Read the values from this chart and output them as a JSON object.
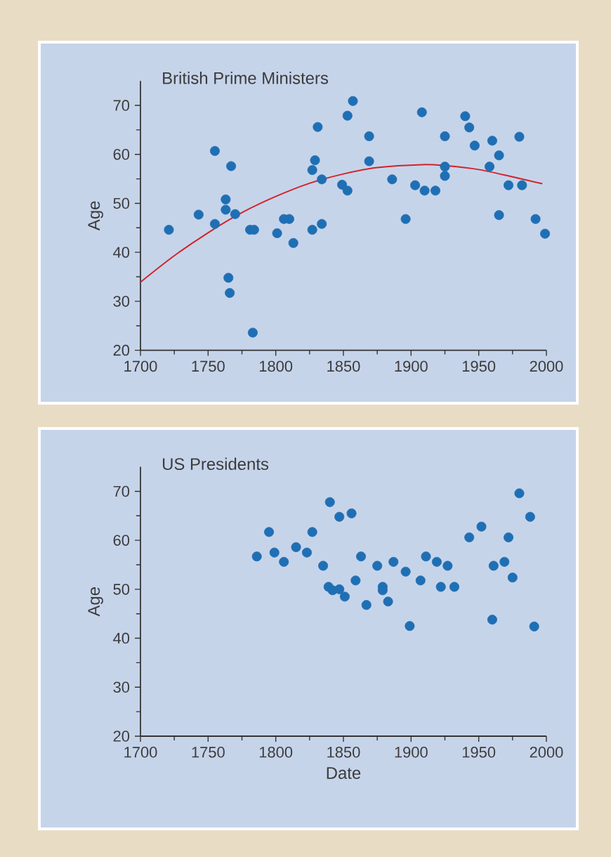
{
  "chart_data": [
    {
      "type": "scatter",
      "title": "British Prime Ministers",
      "ylabel": "Age",
      "xlim": [
        1700,
        2000
      ],
      "ylim": [
        20,
        75
      ],
      "xticks": [
        1700,
        1750,
        1800,
        1850,
        1900,
        1950,
        2000
      ],
      "yticks": [
        20,
        30,
        40,
        50,
        60,
        70
      ],
      "series": [
        {
          "marker": "circle",
          "color": "#1f6fb4",
          "x": [
            1721,
            1743,
            1755,
            1755,
            1763,
            1763,
            1767,
            1770,
            1765,
            1766,
            1781,
            1784,
            1783,
            1801,
            1806,
            1810,
            1813,
            1827,
            1834,
            1827,
            1829,
            1831,
            1834,
            1849,
            1853,
            1853,
            1857,
            1869,
            1869,
            1886,
            1896,
            1903,
            1908,
            1910,
            1918,
            1925,
            1925,
            1925,
            1940,
            1943,
            1947,
            1958,
            1960,
            1965,
            1965,
            1972,
            1980,
            1982,
            1992,
            1999
          ],
          "values": [
            44.6,
            47.7,
            60.7,
            45.8,
            50.8,
            48.7,
            57.6,
            47.8,
            34.8,
            31.7,
            44.6,
            44.6,
            23.6,
            43.9,
            46.8,
            46.8,
            41.9,
            44.6,
            45.8,
            56.8,
            58.8,
            65.6,
            54.9,
            53.8,
            52.6,
            67.9,
            70.9,
            63.7,
            58.6,
            54.9,
            46.8,
            53.7,
            68.6,
            52.6,
            52.6,
            63.7,
            57.5,
            55.6,
            67.8,
            65.5,
            61.8,
            57.5,
            62.8,
            59.8,
            47.6,
            53.7,
            63.6,
            53.7,
            46.8,
            43.8
          ]
        },
        {
          "type": "line",
          "marker": "none",
          "color": "#d2232a",
          "x": [
            1700,
            1725,
            1750,
            1775,
            1800,
            1825,
            1850,
            1875,
            1908,
            1925,
            1950,
            1975,
            1997
          ],
          "values": [
            33.9,
            39.3,
            44.0,
            48.1,
            51.4,
            54.1,
            56.0,
            57.3,
            57.9,
            57.7,
            56.9,
            55.4,
            54.0
          ]
        }
      ]
    },
    {
      "type": "scatter",
      "title": "US Presidents",
      "xlabel": "Date",
      "ylabel": "Age",
      "xlim": [
        1700,
        2000
      ],
      "ylim": [
        20,
        75
      ],
      "xticks": [
        1700,
        1750,
        1800,
        1850,
        1900,
        1950,
        2000
      ],
      "yticks": [
        20,
        30,
        40,
        50,
        60,
        70
      ],
      "series": [
        {
          "marker": "circle",
          "color": "#1f6fb4",
          "x": [
            1786,
            1795,
            1799,
            1806,
            1815,
            1823,
            1827,
            1835,
            1839,
            1842,
            1840,
            1847,
            1847,
            1851,
            1856,
            1859,
            1863,
            1867,
            1875,
            1879,
            1879,
            1883,
            1887,
            1896,
            1899,
            1907,
            1911,
            1919,
            1922,
            1927,
            1932,
            1943,
            1952,
            1960,
            1961,
            1969,
            1972,
            1975,
            1980,
            1988,
            1991
          ],
          "values": [
            56.7,
            61.7,
            57.5,
            55.6,
            58.6,
            57.5,
            61.7,
            54.8,
            50.5,
            49.8,
            67.8,
            64.8,
            50.0,
            48.5,
            65.5,
            51.8,
            56.7,
            46.8,
            54.8,
            50.5,
            49.8,
            47.5,
            55.6,
            53.6,
            42.5,
            51.8,
            56.7,
            55.6,
            50.5,
            54.8,
            50.5,
            60.6,
            62.8,
            43.8,
            54.8,
            55.6,
            60.6,
            52.4,
            69.6,
            64.8,
            42.4
          ]
        }
      ]
    }
  ]
}
